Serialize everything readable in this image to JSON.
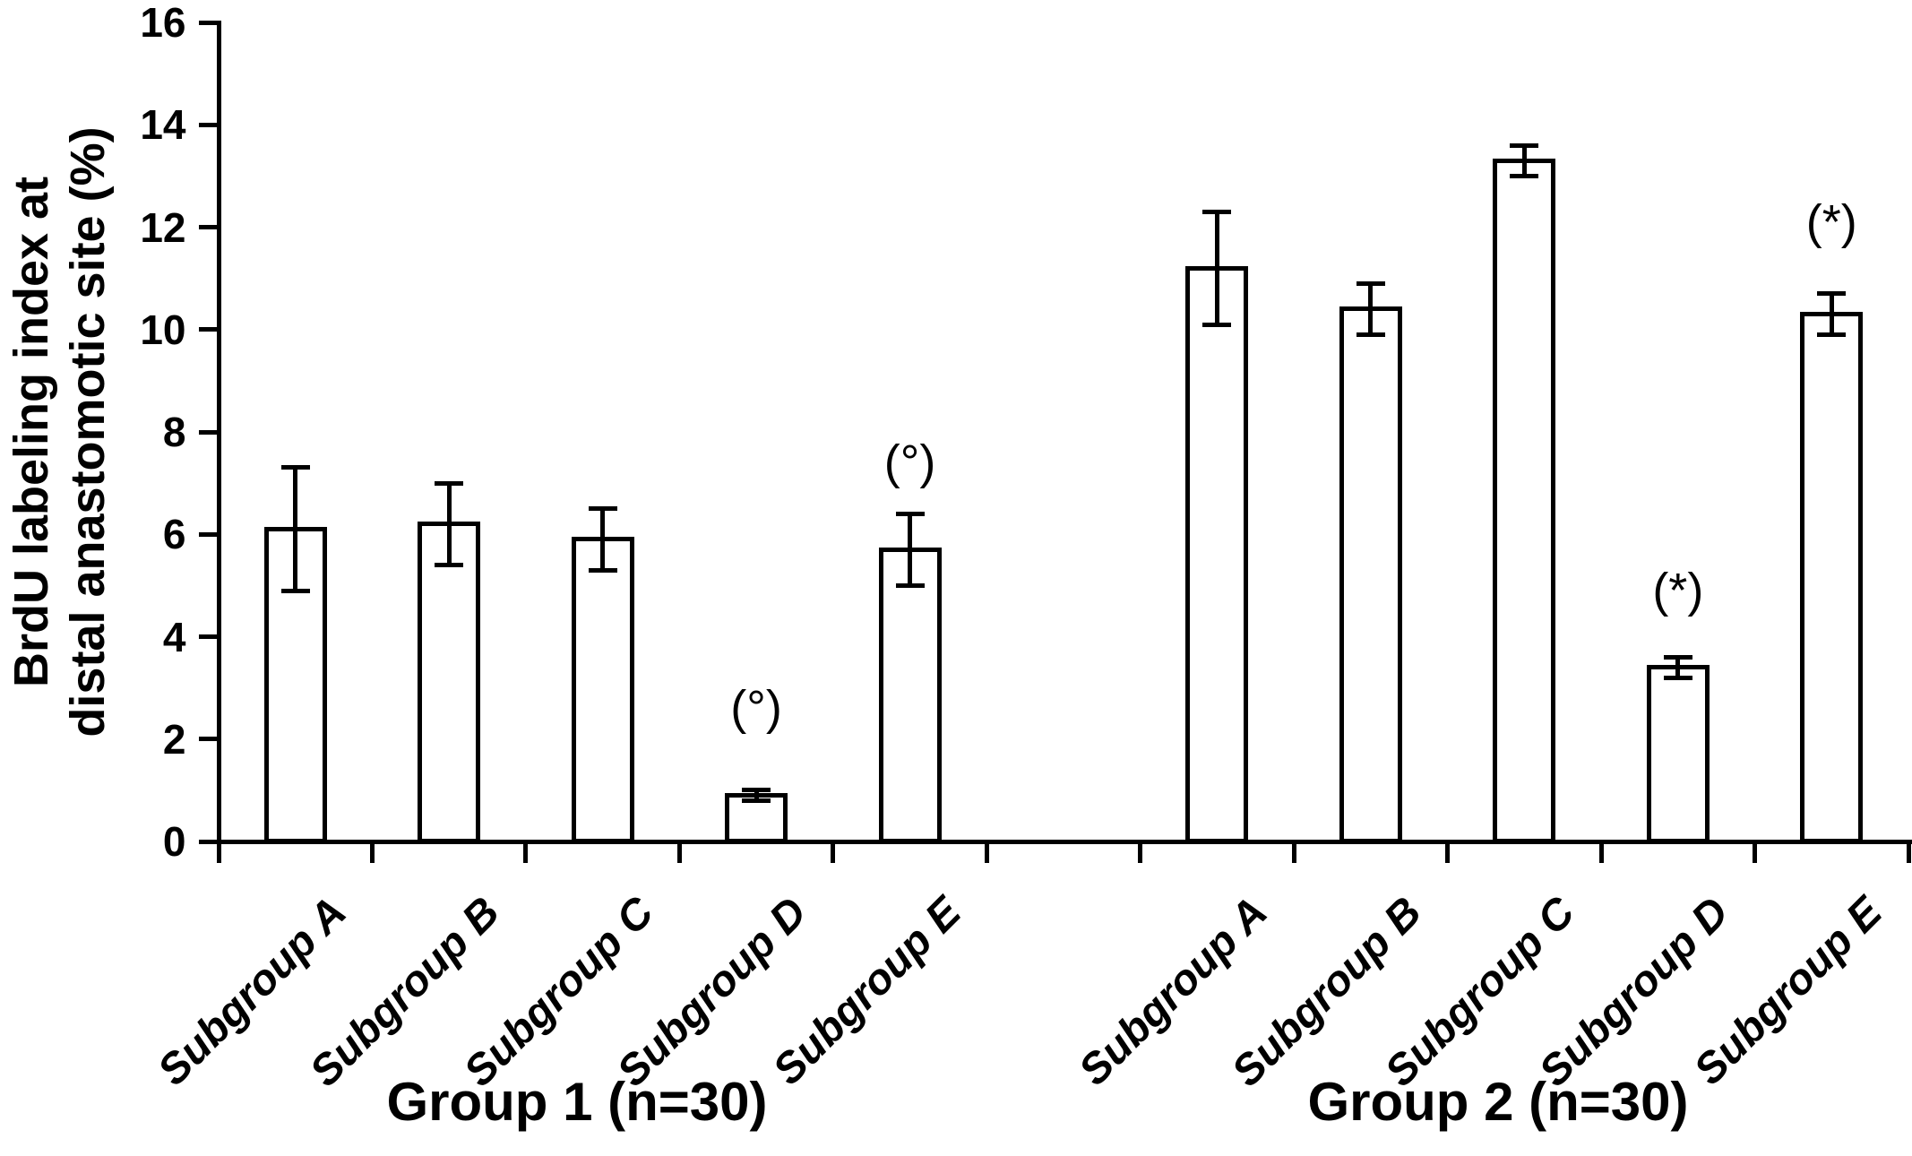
{
  "chart_data": {
    "type": "bar",
    "title": "",
    "xlabel": "",
    "ylabel": "BrdU labeling index at distal anastomotic site (%)",
    "ylabel_lines": [
      "BrdU labeling index at",
      "distal anastomotic site (%)"
    ],
    "ylim": [
      0,
      16
    ],
    "yticks": [
      0,
      2,
      4,
      6,
      8,
      10,
      12,
      14,
      16
    ],
    "grid": false,
    "legend": "none",
    "categories": [
      "Subgroup A",
      "Subgroup B",
      "Subgroup C",
      "Subgroup D",
      "Subgroup E"
    ],
    "series": [
      {
        "name": "Group 1 (n=30)",
        "values": [
          6.1,
          6.2,
          5.9,
          0.9,
          5.7
        ],
        "errors": [
          1.2,
          0.8,
          0.6,
          0.1,
          0.7
        ],
        "annotations": [
          null,
          null,
          null,
          {
            "text": "(°)",
            "y": 2.6
          },
          {
            "text": "(°)",
            "y": 7.4
          }
        ]
      },
      {
        "name": "Group 2 (n=30)",
        "values": [
          11.2,
          10.4,
          13.3,
          3.4,
          10.3
        ],
        "errors": [
          1.1,
          0.5,
          0.3,
          0.2,
          0.4
        ],
        "annotations": [
          null,
          null,
          null,
          {
            "text": "(*)",
            "y": 4.9
          },
          {
            "text": "(*)",
            "y": 12.1
          }
        ]
      }
    ],
    "colors": {
      "background": "#ffffff",
      "bar_fill": "#ffffff",
      "edge": "#000000",
      "text": "#000000"
    }
  }
}
